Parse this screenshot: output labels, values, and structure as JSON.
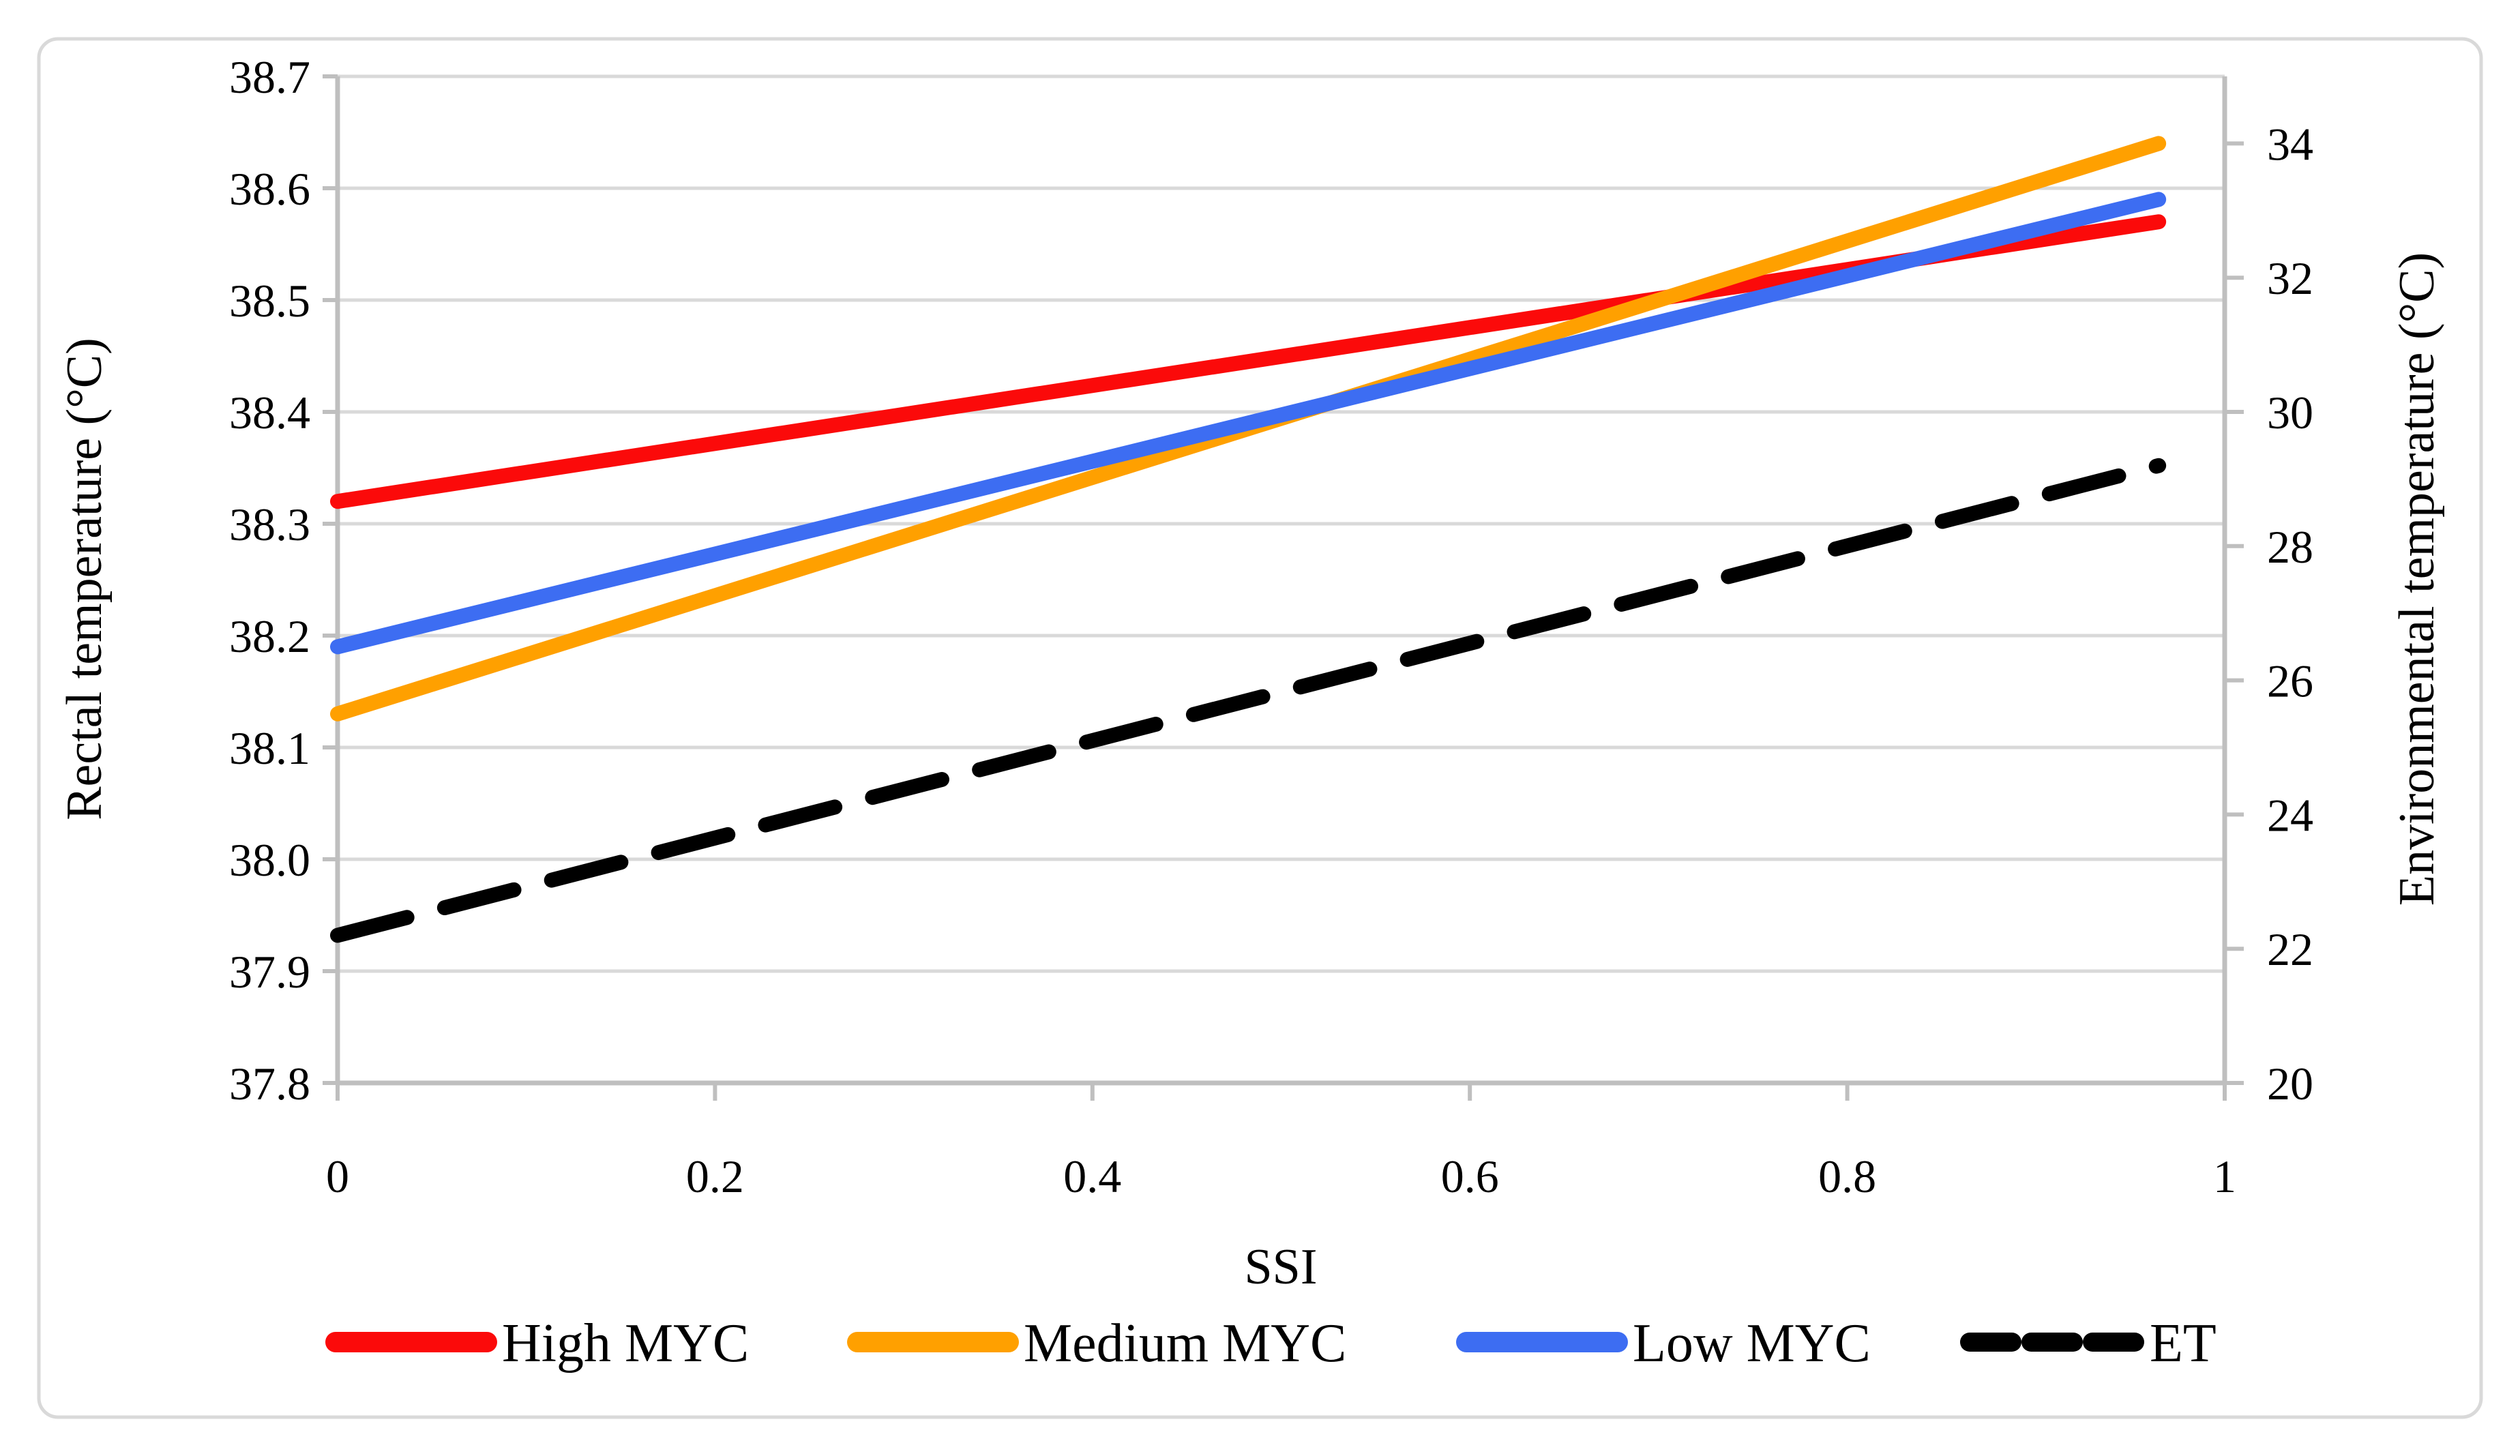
{
  "figure": {
    "background_color": "#FFFFFF",
    "border_color": "#D9D9D9",
    "gridline_color": "#D9D9D9",
    "axis_line_color": "#BFBFBF",
    "text_color": "#000000"
  },
  "chart_data": {
    "type": "line",
    "title": "",
    "gridlines": "horizontal",
    "legend_position": "bottom",
    "x_axis": {
      "title": "SSI",
      "range": [
        0,
        1
      ],
      "tick_values": [
        0,
        0.2,
        0.4,
        0.6,
        0.8,
        1
      ],
      "tick_labels": [
        "0",
        "0.2",
        "0.4",
        "0.6",
        "0.8",
        "1"
      ]
    },
    "left_y_axis": {
      "title": "Rectal temperature (°C)",
      "range": [
        37.8,
        38.7
      ],
      "tick_step": 0.1,
      "tick_values": [
        38.7,
        38.6,
        38.5,
        38.4,
        38.3,
        38.2,
        38.1,
        38.0,
        37.9,
        37.8
      ],
      "tick_labels": [
        "38.7",
        "38.6",
        "38.5",
        "38.4",
        "38.3",
        "38.2",
        "38.1",
        "38.0",
        "37.9",
        "37.8"
      ]
    },
    "right_y_axis": {
      "title": "Environmental temperature (°C)",
      "range": [
        20,
        35
      ],
      "tick_values": [
        34,
        32,
        30,
        28,
        26,
        24,
        22,
        20
      ],
      "tick_labels": [
        "34",
        "32",
        "30",
        "28",
        "26",
        "24",
        "22",
        "20"
      ]
    },
    "series": [
      {
        "name": "High MYC",
        "color": "#FB0A0A",
        "axis": "left",
        "style": "solid",
        "x": [
          0,
          0.965
        ],
        "y": [
          38.32,
          38.57
        ]
      },
      {
        "name": "Medium MYC",
        "color": "#FFA000",
        "axis": "left",
        "style": "solid",
        "x": [
          0,
          0.965
        ],
        "y": [
          38.13,
          38.64
        ]
      },
      {
        "name": "Low MYC",
        "color": "#3D6DF2",
        "axis": "left",
        "style": "solid",
        "x": [
          0,
          0.965
        ],
        "y": [
          38.19,
          38.59
        ]
      },
      {
        "name": "ET",
        "color": "#000000",
        "axis": "right",
        "style": "dashed",
        "x": [
          0,
          0.965
        ],
        "y": [
          22.2,
          29.2
        ]
      }
    ]
  }
}
